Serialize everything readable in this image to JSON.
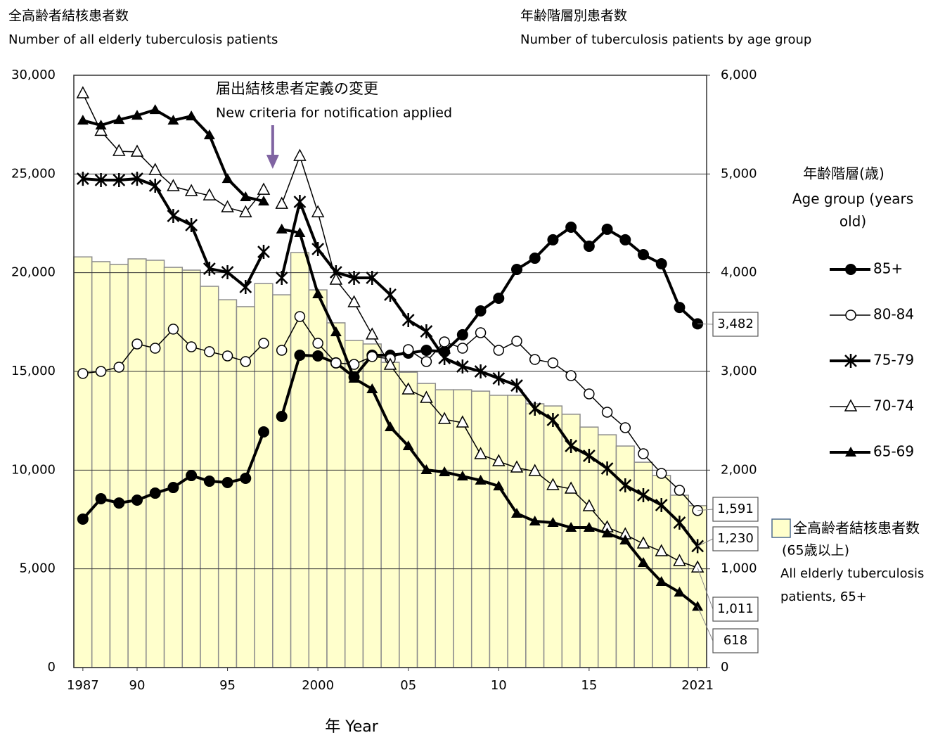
{
  "chart_data": {
    "type": "bar_line",
    "title_left": "全高齢者結核患者数",
    "subtitle_left": "Number of all elderly tuberculosis patients",
    "title_right": "年齢階層別患者数",
    "subtitle_right": "Number of tuberculosis patients by age group",
    "x_label": "年  Year",
    "annotation": {
      "text": "届出結核患者定義の変更",
      "text_en": "New criteria for notification applied",
      "year": 1998,
      "color": "#8064a2"
    },
    "x": [
      1987,
      1988,
      1989,
      1990,
      1991,
      1992,
      1993,
      1994,
      1995,
      1996,
      1997,
      1998,
      1999,
      2000,
      2001,
      2002,
      2003,
      2004,
      2005,
      2006,
      2007,
      2008,
      2009,
      2010,
      2011,
      2012,
      2013,
      2014,
      2015,
      2016,
      2017,
      2018,
      2019,
      2020,
      2021
    ],
    "xticks": [
      1987,
      {
        "value": 1990,
        "label": "90"
      },
      {
        "value": 1995,
        "label": "95"
      },
      2000,
      {
        "value": 2005,
        "label": "05"
      },
      {
        "value": 2010,
        "label": "10"
      },
      {
        "value": 2015,
        "label": "15"
      },
      2021
    ],
    "ylim": [
      0,
      30000
    ],
    "yticks": [
      0,
      {
        "value": 5000,
        "label": "5,000"
      },
      {
        "value": 10000,
        "label": "10,000"
      },
      {
        "value": 15000,
        "label": "15,000"
      },
      {
        "value": 20000,
        "label": "20,000"
      },
      {
        "value": 25000,
        "label": "25,000"
      },
      {
        "value": 30000,
        "label": "30,000"
      }
    ],
    "y2lim": [
      0,
      6000
    ],
    "y2ticks": [
      0,
      {
        "value": 1000,
        "label": "1,000"
      },
      {
        "value": 2000,
        "label": "2,000"
      },
      {
        "value": 3000,
        "label": "3,000"
      },
      {
        "value": 4000,
        "label": "4,000"
      },
      {
        "value": 5000,
        "label": "5,000"
      },
      {
        "value": 6000,
        "label": "6,000"
      }
    ],
    "grid": true,
    "bars": {
      "name": "全高齢者結核患者数",
      "name_note": "(65歳以上)",
      "name_en": [
        "All elderly tuberculosis",
        "patients, 65+"
      ],
      "color": "#ffffcc",
      "values": [
        20800,
        20560,
        20420,
        20700,
        20630,
        20270,
        20130,
        19310,
        18630,
        18280,
        19450,
        18880,
        21020,
        19130,
        17460,
        16570,
        16390,
        15460,
        14960,
        14390,
        14070,
        14070,
        14000,
        13790,
        13790,
        13360,
        13250,
        12830,
        12180,
        11790,
        11220,
        10400,
        9730,
        8730,
        8200
      ]
    },
    "legend_title": "年齢階層(歳)",
    "legend_title_en": [
      "Age group (years",
      "old)"
    ],
    "series": [
      {
        "name": "85+",
        "marker": "filled-circle",
        "color": "#000000",
        "axis": "y2",
        "end_label": "3,482",
        "values": [
          1504,
          1710,
          1667,
          1696,
          1767,
          1824,
          1945,
          1888,
          1874,
          1917,
          2387,
          2544,
          3164,
          3157,
          3086,
          2943,
          3164,
          3164,
          3185,
          3214,
          3200,
          3371,
          3613,
          3741,
          4033,
          4147,
          4333,
          4461,
          4268,
          4440,
          4333,
          4183,
          4090,
          3648,
          3482
        ]
      },
      {
        "name": "80-84",
        "marker": "open-circle",
        "color": "#000000",
        "axis": "y2",
        "end_label": "1,591",
        "values": [
          2979,
          3000,
          3043,
          3278,
          3235,
          3428,
          3249,
          3200,
          3157,
          3100,
          3285,
          3214,
          3556,
          3285,
          3086,
          3071,
          3150,
          3128,
          3221,
          3100,
          3299,
          3235,
          3392,
          3214,
          3306,
          3121,
          3086,
          2957,
          2772,
          2587,
          2430,
          2166,
          1967,
          1796,
          1591
        ]
      },
      {
        "name": "75-79",
        "marker": "star",
        "color": "#000000",
        "axis": "y2",
        "end_label": "1,230",
        "values": [
          4952,
          4938,
          4938,
          4952,
          4881,
          4575,
          4482,
          4040,
          4005,
          3855,
          4211,
          3948,
          4717,
          4240,
          4005,
          3948,
          3948,
          3777,
          3520,
          3406,
          3135,
          3050,
          3000,
          2929,
          2857,
          2622,
          2508,
          2245,
          2145,
          2017,
          1846,
          1746,
          1646,
          1468,
          1230
        ]
      },
      {
        "name": "70-74",
        "marker": "open-triangle",
        "color": "#000000",
        "axis": "y2",
        "end_label": "1,011",
        "values": [
          5815,
          5434,
          5230,
          5223,
          5038,
          4874,
          4824,
          4781,
          4660,
          4610,
          4838,
          4695,
          5180,
          4610,
          3926,
          3698,
          3371,
          3064,
          2815,
          2729,
          2515,
          2480,
          2159,
          2088,
          2024,
          1988,
          1846,
          1810,
          1632,
          1418,
          1347,
          1254,
          1176,
          1076,
          1011
        ]
      },
      {
        "name": "65-69",
        "marker": "filled-triangle",
        "color": "#000000",
        "axis": "y2",
        "end_label": "618",
        "values": [
          5543,
          5493,
          5550,
          5593,
          5650,
          5543,
          5586,
          5394,
          4952,
          4767,
          4724,
          4440,
          4404,
          3784,
          3399,
          2929,
          2822,
          2437,
          2245,
          2002,
          1981,
          1938,
          1896,
          1838,
          1561,
          1482,
          1468,
          1418,
          1418,
          1361,
          1290,
          1062,
          869,
          762,
          618
        ]
      }
    ]
  }
}
